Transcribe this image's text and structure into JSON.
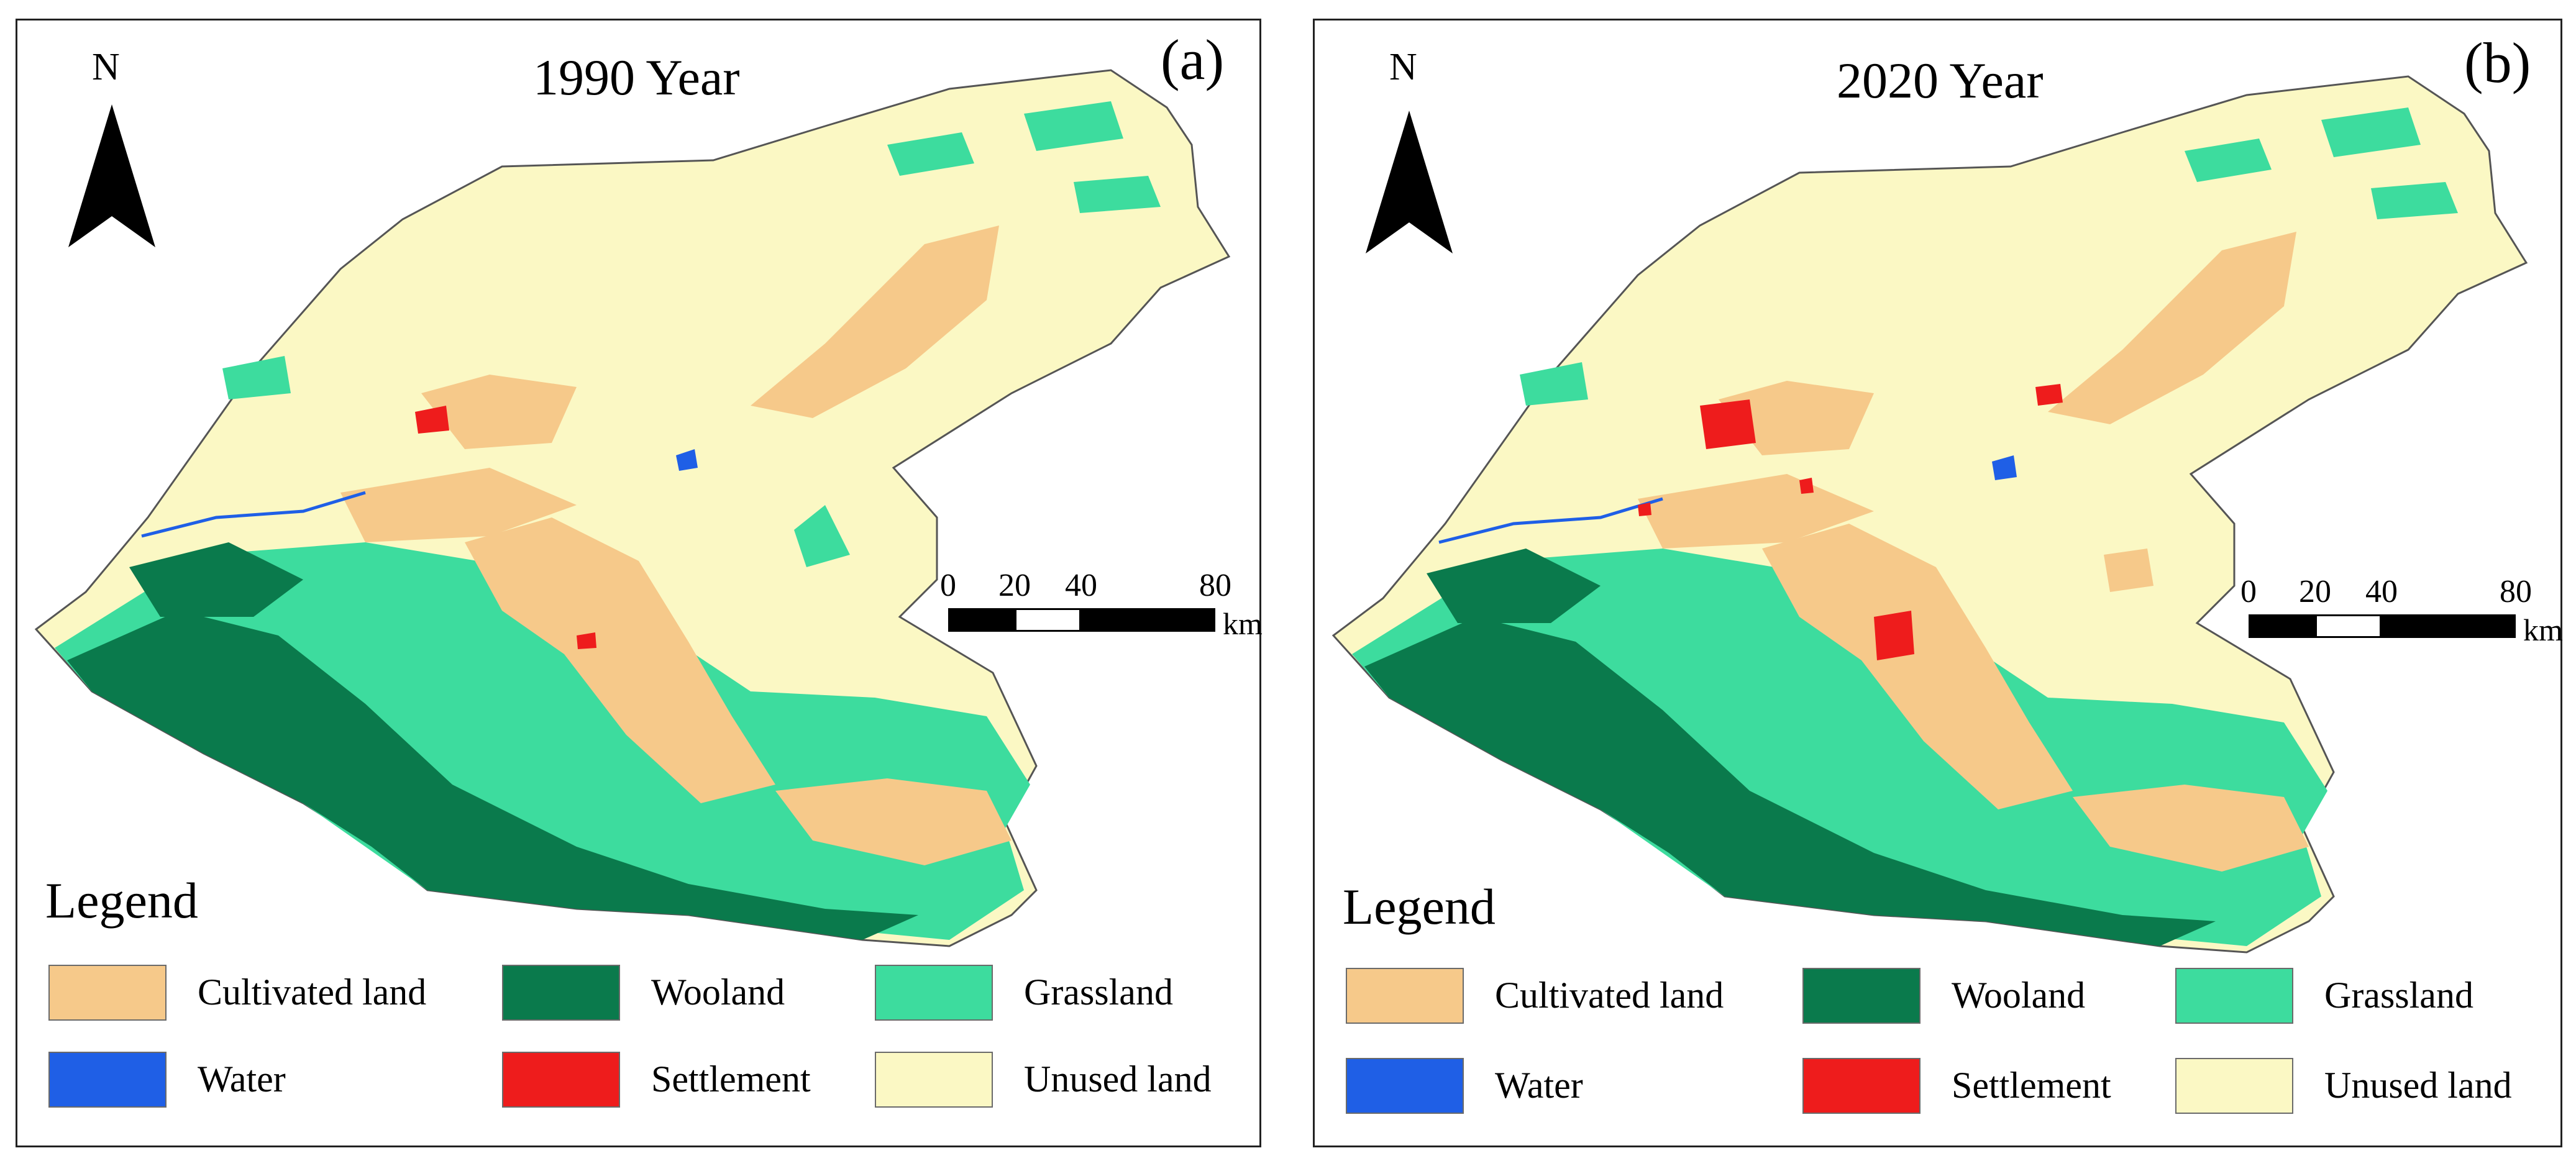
{
  "colors": {
    "cultivated": "#f6c98a",
    "woodland": "#0a7a4c",
    "grassland": "#3ddc9e",
    "water": "#1f5fe6",
    "settlement": "#ee1c1c",
    "unused": "#fbf8c4"
  },
  "north_label": "N",
  "panels": [
    {
      "title": "1990 Year",
      "tag": "(a)",
      "scale": {
        "labels": [
          "0",
          "20",
          "40",
          "80"
        ],
        "unit": "km"
      },
      "legend": {
        "title": "Legend",
        "items": [
          {
            "label": "Cultivated land",
            "color": "#f6c98a"
          },
          {
            "label": "Wooland",
            "color": "#0a7a4c"
          },
          {
            "label": "Grassland",
            "color": "#3ddc9e"
          },
          {
            "label": "Water",
            "color": "#1f5fe6"
          },
          {
            "label": "Settlement",
            "color": "#ee1c1c"
          },
          {
            "label": "Unused land",
            "color": "#fbf8c4"
          }
        ]
      }
    },
    {
      "title": "2020 Year",
      "tag": "(b)",
      "scale": {
        "labels": [
          "0",
          "20",
          "40",
          "80"
        ],
        "unit": "km"
      },
      "legend": {
        "title": "Legend",
        "items": [
          {
            "label": "Cultivated land",
            "color": "#f6c98a"
          },
          {
            "label": "Wooland",
            "color": "#0a7a4c"
          },
          {
            "label": "Grassland",
            "color": "#3ddc9e"
          },
          {
            "label": "Water",
            "color": "#1f5fe6"
          },
          {
            "label": "Settlement",
            "color": "#ee1c1c"
          },
          {
            "label": "Unused land",
            "color": "#fbf8c4"
          }
        ]
      }
    }
  ]
}
